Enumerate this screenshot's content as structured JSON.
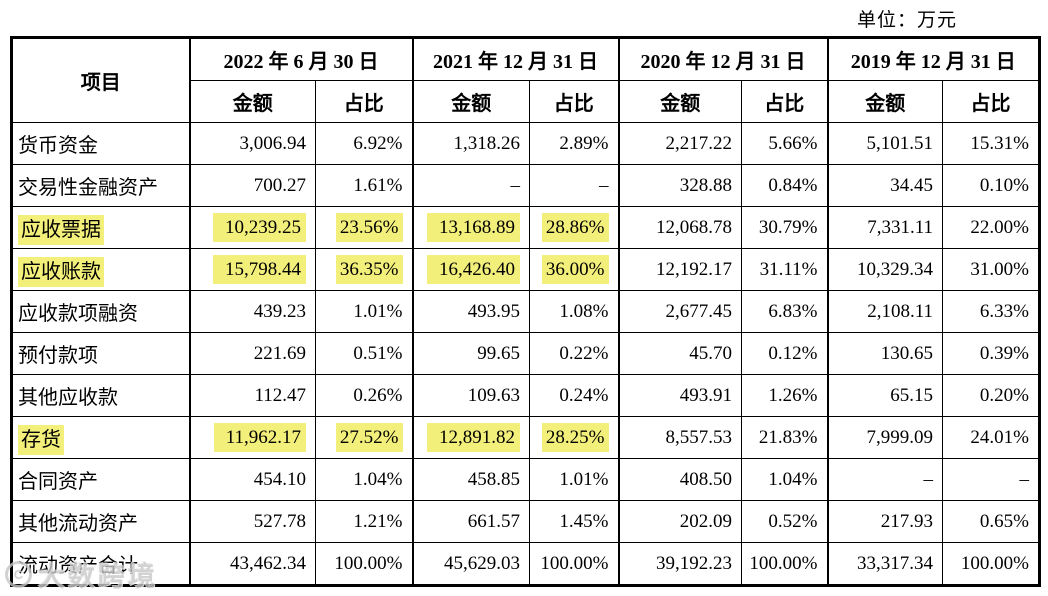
{
  "unit_label": "单位：万元",
  "watermark": {
    "logo": "C",
    "text": "大数跨境"
  },
  "table": {
    "item_header": "项目",
    "amount_header": "金额",
    "ratio_header": "占比",
    "highlight_color": "#F3EF7B",
    "periods": [
      {
        "label": "2022 年 6 月 30 日"
      },
      {
        "label": "2021 年 12 月 31 日"
      },
      {
        "label": "2020 年 12 月 31 日"
      },
      {
        "label": "2019 年 12 月 31 日"
      }
    ],
    "rows": [
      {
        "label": "货币资金",
        "highlighted": false,
        "values": [
          "3,006.94",
          "6.92%",
          "1,318.26",
          "2.89%",
          "2,217.22",
          "5.66%",
          "5,101.51",
          "15.31%"
        ]
      },
      {
        "label": "交易性金融资产",
        "highlighted": false,
        "values": [
          "700.27",
          "1.61%",
          "–",
          "–",
          "328.88",
          "0.84%",
          "34.45",
          "0.10%"
        ]
      },
      {
        "label": "应收票据",
        "highlighted": true,
        "values": [
          "10,239.25",
          "23.56%",
          "13,168.89",
          "28.86%",
          "12,068.78",
          "30.79%",
          "7,331.11",
          "22.00%"
        ]
      },
      {
        "label": "应收账款",
        "highlighted": true,
        "values": [
          "15,798.44",
          "36.35%",
          "16,426.40",
          "36.00%",
          "12,192.17",
          "31.11%",
          "10,329.34",
          "31.00%"
        ]
      },
      {
        "label": "应收款项融资",
        "highlighted": false,
        "values": [
          "439.23",
          "1.01%",
          "493.95",
          "1.08%",
          "2,677.45",
          "6.83%",
          "2,108.11",
          "6.33%"
        ]
      },
      {
        "label": "预付款项",
        "highlighted": false,
        "values": [
          "221.69",
          "0.51%",
          "99.65",
          "0.22%",
          "45.70",
          "0.12%",
          "130.65",
          "0.39%"
        ]
      },
      {
        "label": "其他应收款",
        "highlighted": false,
        "values": [
          "112.47",
          "0.26%",
          "109.63",
          "0.24%",
          "493.91",
          "1.26%",
          "65.15",
          "0.20%"
        ]
      },
      {
        "label": "存货",
        "highlighted": true,
        "values": [
          "11,962.17",
          "27.52%",
          "12,891.82",
          "28.25%",
          "8,557.53",
          "21.83%",
          "7,999.09",
          "24.01%"
        ]
      },
      {
        "label": "合同资产",
        "highlighted": false,
        "values": [
          "454.10",
          "1.04%",
          "458.85",
          "1.01%",
          "408.50",
          "1.04%",
          "–",
          "–"
        ]
      },
      {
        "label": "其他流动资产",
        "highlighted": false,
        "values": [
          "527.78",
          "1.21%",
          "661.57",
          "1.45%",
          "202.09",
          "0.52%",
          "217.93",
          "0.65%"
        ]
      },
      {
        "label": "流动资产合计",
        "highlighted": false,
        "values": [
          "43,462.34",
          "100.00%",
          "45,629.03",
          "100.00%",
          "39,192.23",
          "100.00%",
          "33,317.34",
          "100.00%"
        ]
      }
    ]
  }
}
